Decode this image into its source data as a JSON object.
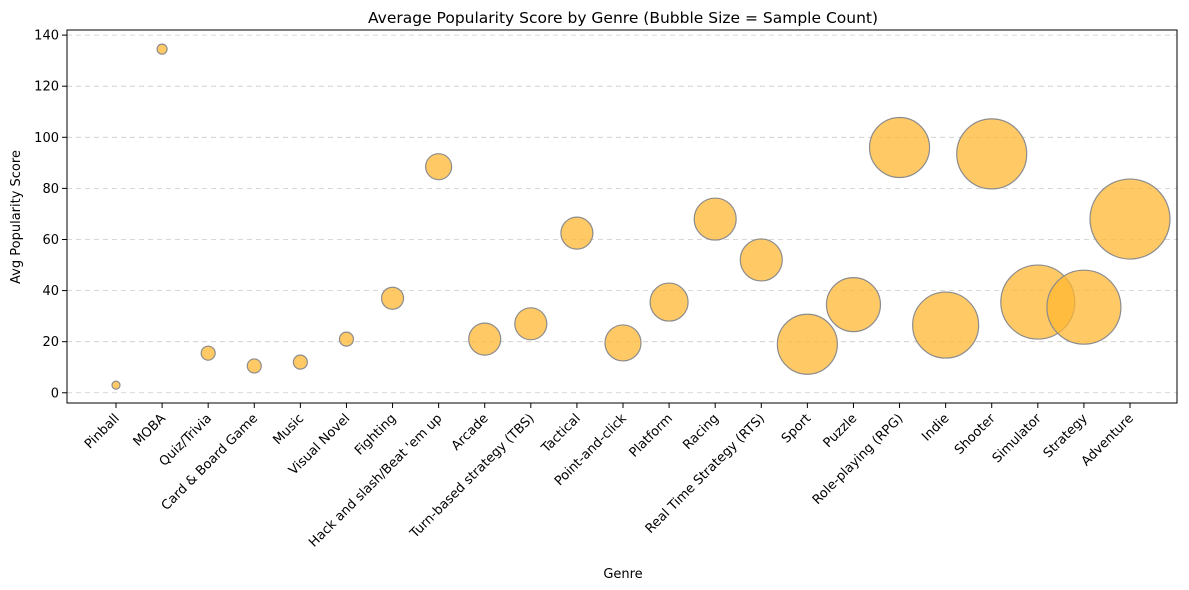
{
  "chart_data": {
    "type": "scatter",
    "title": "Average Popularity Score by Genre (Bubble Size = Sample Count)",
    "xlabel": "Genre",
    "ylabel": "Avg Popularity Score",
    "ylim": [
      -4,
      142
    ],
    "yticks": [
      0,
      20,
      40,
      60,
      80,
      100,
      120,
      140
    ],
    "grid": "y-dashed",
    "bubble_color": "#FFB733",
    "bubble_edge": "#8c8c8c",
    "categories": [
      "Pinball",
      "MOBA",
      "Quiz/Trivia",
      "Card & Board Game",
      "Music",
      "Visual Novel",
      "Fighting",
      "Hack and slash/Beat 'em up",
      "Arcade",
      "Turn-based strategy (TBS)",
      "Tactical",
      "Point-and-click",
      "Platform",
      "Racing",
      "Real Time Strategy (RTS)",
      "Sport",
      "Puzzle",
      "Role-playing (RPG)",
      "Indie",
      "Shooter",
      "Simulator",
      "Strategy",
      "Adventure"
    ],
    "values": [
      3,
      134.5,
      15.5,
      10.5,
      12,
      21,
      37,
      88.5,
      21,
      27,
      62.5,
      19.5,
      35.5,
      68,
      52,
      19,
      34.5,
      96,
      26.5,
      93.5,
      35.5,
      33.5,
      68
    ],
    "relative_sizes": [
      4,
      5,
      7,
      7,
      7,
      7,
      11,
      13,
      16,
      16,
      16,
      18,
      19,
      21,
      21,
      30,
      27,
      30,
      33,
      35,
      37,
      37,
      40
    ]
  }
}
